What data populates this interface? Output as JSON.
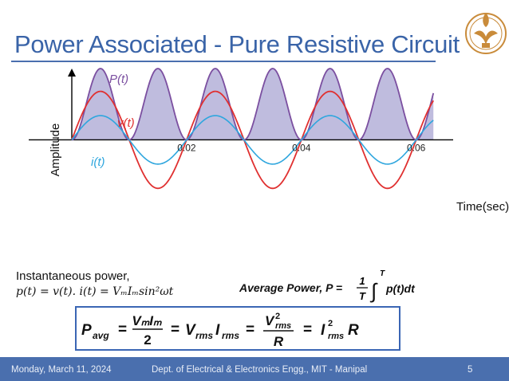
{
  "slide": {
    "title": "Power Associated - Pure Resistive Circuit",
    "inst_label": "Instantaneous power,",
    "inst_eq": "p(t) = v(t). i(t) = VₘIₘsin²ωt",
    "avg_lhs": "Average Power",
    "avg_p": "P",
    "avg_one": "1",
    "avg_T": "T",
    "avg_int_top": "T",
    "avg_integrand": "p(t)dt",
    "box_lhs": "P",
    "box_lhs_sub": "avg",
    "box_vmim": "VₘIₘ",
    "box_two": "2",
    "box_vrms": "V",
    "box_sub_rms": "rms",
    "box_irms": "I",
    "box_vrms2_num": "V",
    "box_sup2": "2",
    "box_R": "R",
    "box_irms2": "I",
    "footer_date": "Monday, March 11, 2024",
    "footer_dept": "Dept. of Electrical & Electronics Engg., MIT - Manipal",
    "footer_page": "5"
  },
  "colors": {
    "power": "#7b4fa0",
    "power_fill": "#b4b0d8",
    "voltage": "#e03030",
    "current": "#2ea6de",
    "accent": "#3b66b4"
  },
  "chart_data": {
    "type": "line",
    "xlabel": "Time(sec)",
    "ylabel": "Amplitude",
    "xlim": [
      0,
      0.067
    ],
    "ylim": [
      -1.28,
      1.0
    ],
    "x_ticks": [
      0.02,
      0.04,
      0.06
    ],
    "x_tick_labels": [
      "0.02",
      "0.04",
      "0.06"
    ],
    "grid": false,
    "series": [
      {
        "name": "P(t)",
        "shape": "sin^2",
        "frequency_hz": 50,
        "amplitude": 1.0,
        "offset": 0,
        "fill": true
      },
      {
        "name": "v(t)",
        "shape": "sin",
        "frequency_hz": 50,
        "amplitude": 0.68,
        "fill": false
      },
      {
        "name": "i(t)",
        "shape": "sin",
        "frequency_hz": 50,
        "amplitude": 0.34,
        "fill": false
      }
    ]
  }
}
